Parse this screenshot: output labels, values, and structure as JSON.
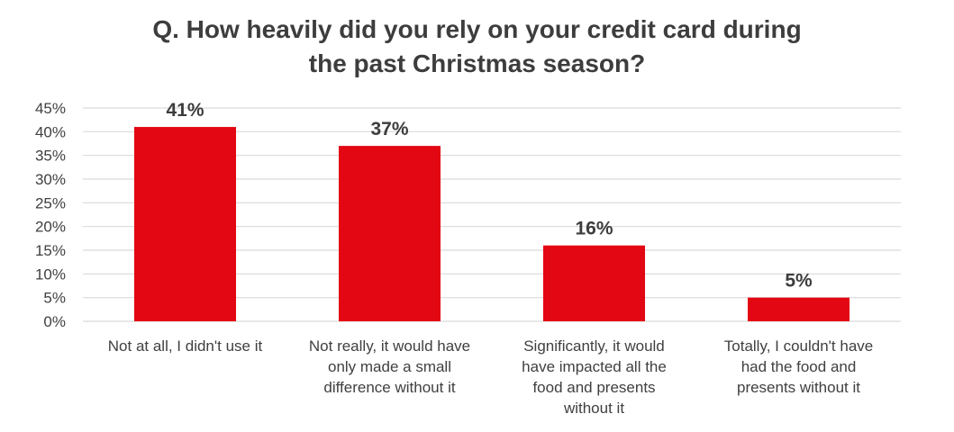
{
  "chart_data": {
    "type": "bar",
    "title_lines": [
      "Q. How heavily did you rely on your credit card during",
      "the past Christmas season?"
    ],
    "categories": [
      [
        "Not at all, I didn't use it"
      ],
      [
        "Not really, it would have",
        "only made a small",
        "difference without it"
      ],
      [
        "Significantly, it would",
        "have impacted all the",
        "food and presents",
        "without it"
      ],
      [
        "Totally, I couldn't have",
        "had the food and",
        "presents without it"
      ]
    ],
    "values": [
      41,
      37,
      16,
      5
    ],
    "data_labels": [
      "41%",
      "37%",
      "16%",
      "5%"
    ],
    "ylim": [
      0,
      45
    ],
    "yticks": [
      0,
      5,
      10,
      15,
      20,
      25,
      30,
      35,
      40,
      45
    ],
    "ytick_labels": [
      "0%",
      "5%",
      "10%",
      "15%",
      "20%",
      "25%",
      "30%",
      "35%",
      "40%",
      "45%"
    ],
    "grid": true,
    "legend": "none",
    "bar_color": "#e30613",
    "grid_color": "#d9d9d9"
  }
}
